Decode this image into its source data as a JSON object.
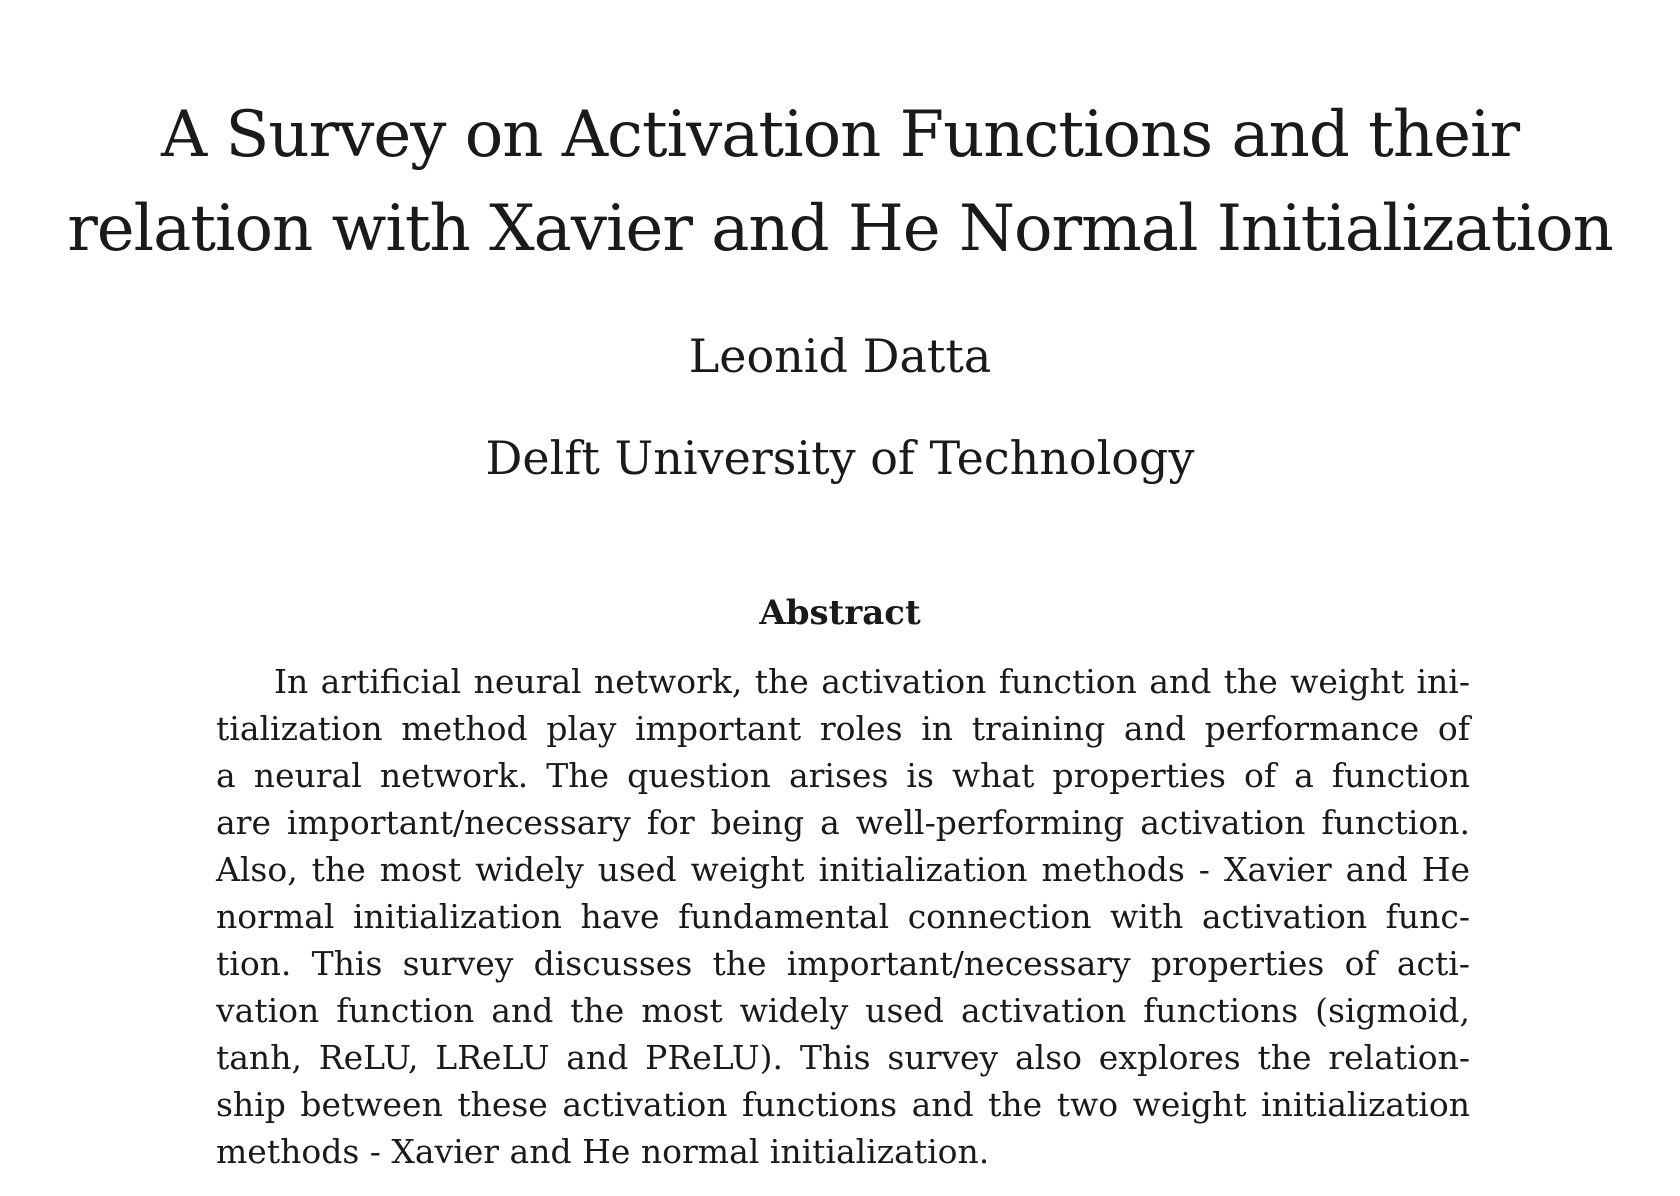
{
  "paper": {
    "title_lines": [
      "A Survey on Activation Functions and their",
      "relation with Xavier and He Normal Initialization"
    ],
    "author": "Leonid Datta",
    "affiliation": "Delft University of Technology",
    "abstract": {
      "heading": "Abstract",
      "lines": [
        "In artificial neural network, the activation function and the weight ini-",
        "tialization method play important roles in training and performance of",
        "a neural network. The question arises is what properties of a function",
        "are important/necessary for being a well-performing activation function.",
        "Also, the most widely used weight initialization methods - Xavier and He",
        "normal initialization have fundamental connection with activation func-",
        "tion. This survey discusses the important/necessary properties of acti-",
        "vation function and the most widely used activation functions (sigmoid,",
        "tanh, ReLU, LReLU and PReLU). This survey also explores the relation-",
        "ship between these activation functions and the two weight initialization",
        "methods - Xavier and He normal initialization."
      ]
    }
  }
}
